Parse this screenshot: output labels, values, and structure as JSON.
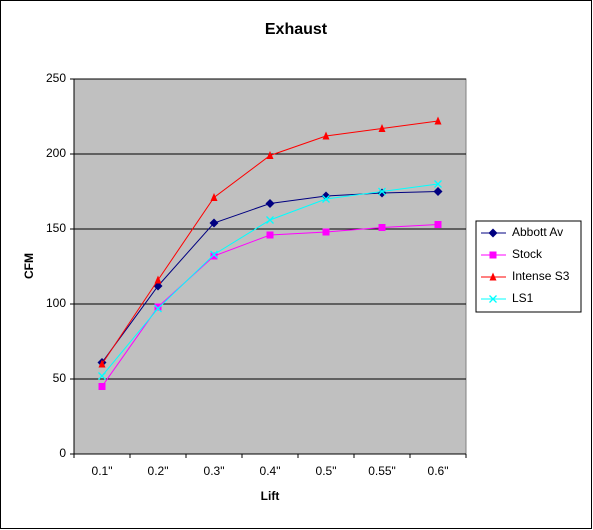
{
  "chart_data": {
    "type": "line",
    "title": "Exhaust",
    "x_label": "Lift",
    "y_label": "CFM",
    "categories": [
      "0.1\"",
      "0.2\"",
      "0.3\"",
      "0.4\"",
      "0.5\"",
      "0.55\"",
      "0.6\""
    ],
    "series": [
      {
        "name": "Abbott Av",
        "color": "#000080",
        "marker": "diamond",
        "values": [
          61,
          112,
          154,
          167,
          172,
          174,
          175
        ]
      },
      {
        "name": "Stock",
        "color": "#ff00ff",
        "marker": "square",
        "values": [
          45,
          98,
          132,
          146,
          148,
          151,
          153
        ]
      },
      {
        "name": "Intense S3",
        "color": "#ff0000",
        "marker": "triangle",
        "values": [
          60,
          116,
          171,
          199,
          212,
          217,
          222
        ]
      },
      {
        "name": "LS1",
        "color": "#00ffff",
        "marker": "x",
        "values": [
          52,
          97,
          133,
          156,
          170,
          175,
          180
        ]
      }
    ],
    "ylim": [
      0,
      250
    ],
    "yticks": [
      0,
      50,
      100,
      150,
      200,
      250
    ],
    "grid": true,
    "legend": "right",
    "plot_background": "#c0c0c0"
  }
}
